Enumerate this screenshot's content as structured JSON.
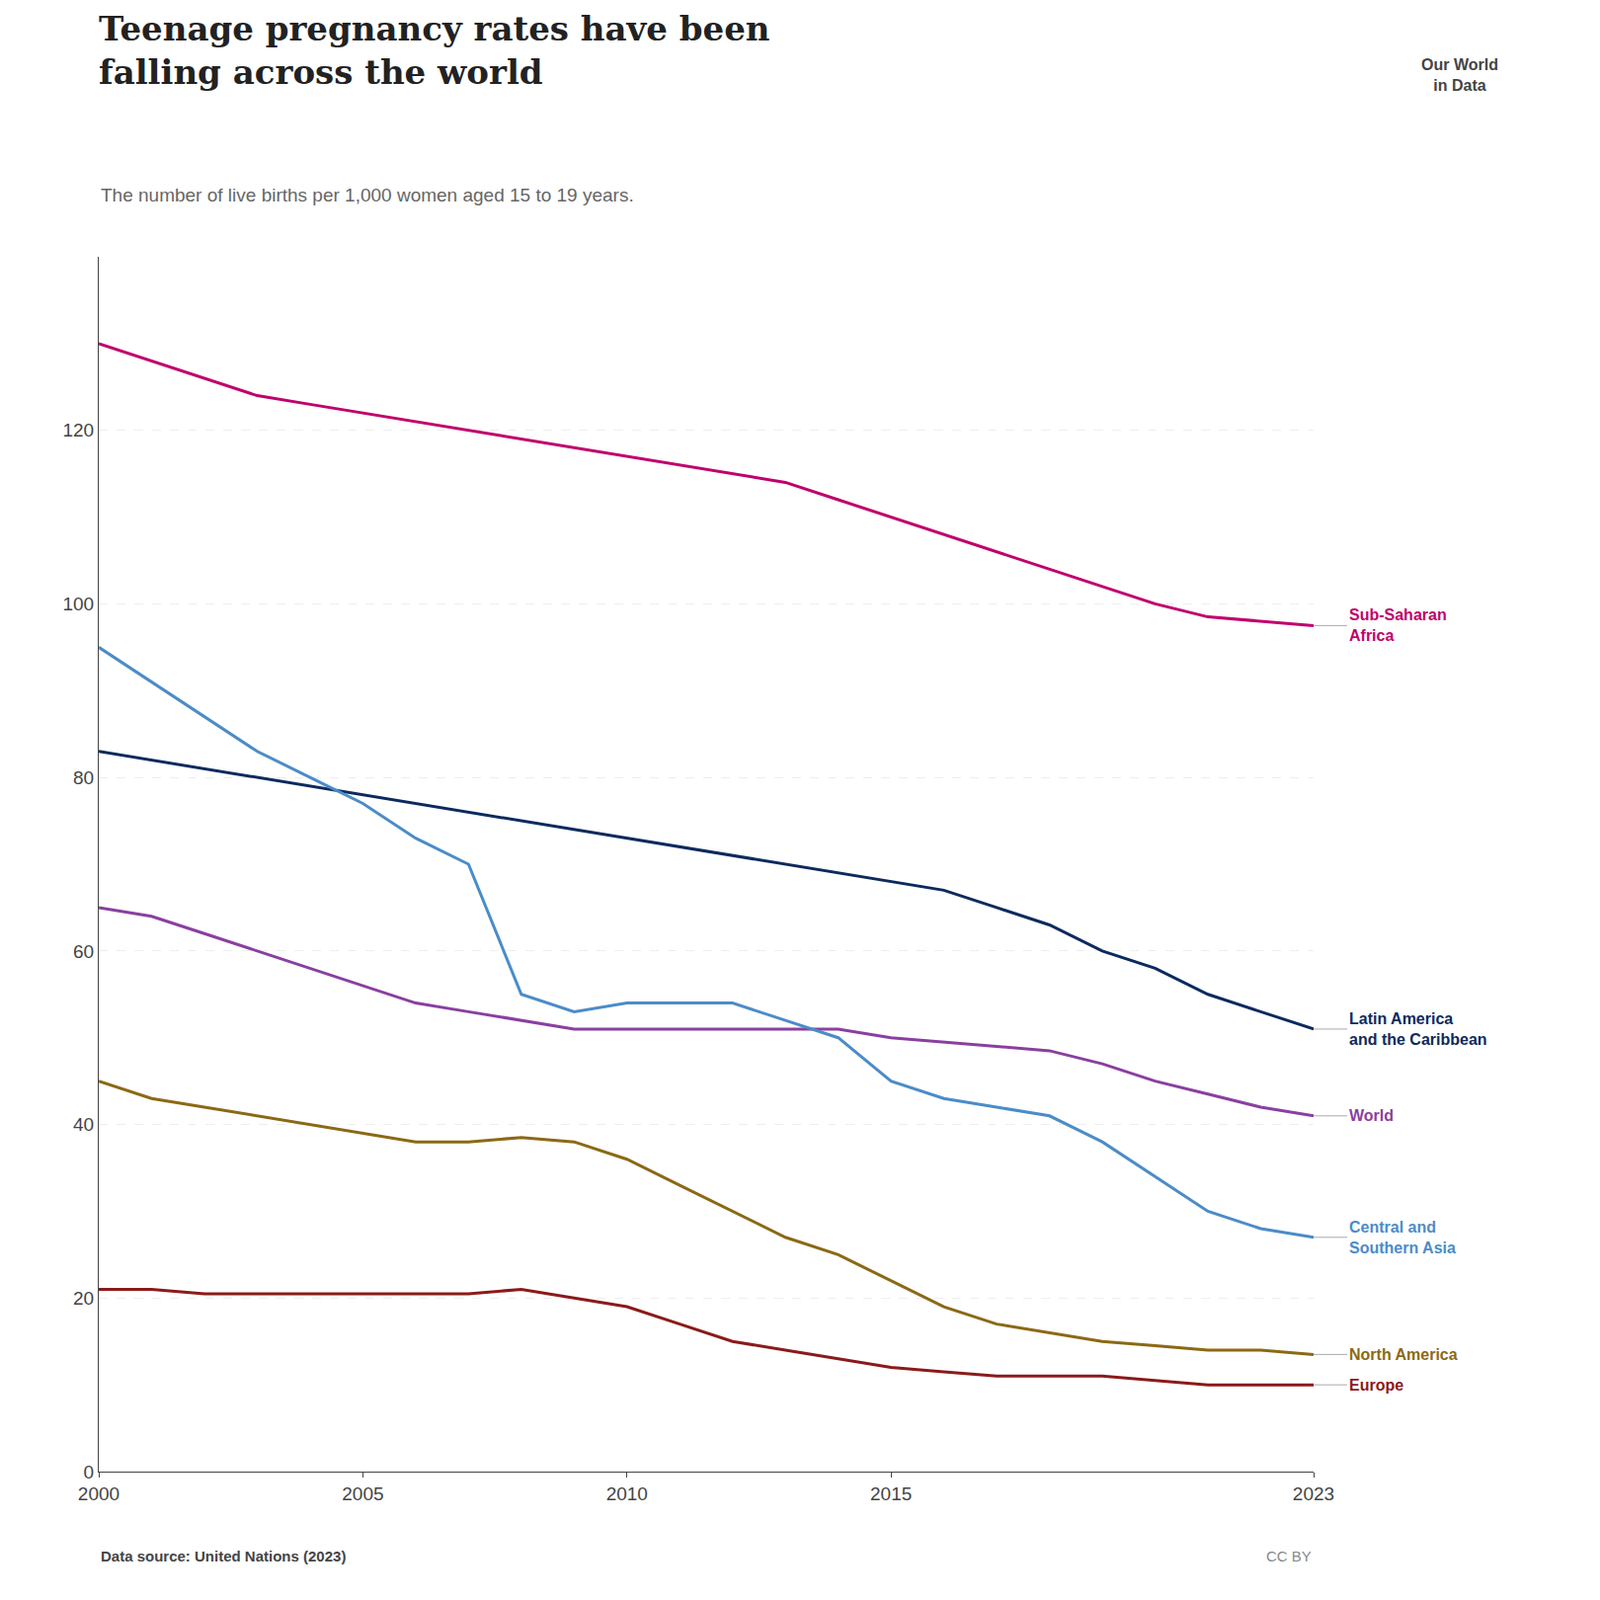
{
  "chart_data": {
    "type": "line",
    "title": "Teenage pregnancy rates have been\nfalling across the world",
    "subtitle": "The number of live births per 1,000 women aged 15 to 19 years.",
    "annotations": [
      "Data source: United Nations (2023)",
      "CC BY",
      "Our World\nin Data"
    ],
    "x": [
      2000,
      2001,
      2002,
      2003,
      2004,
      2005,
      2006,
      2007,
      2008,
      2009,
      2010,
      2011,
      2012,
      2013,
      2014,
      2015,
      2016,
      2017,
      2018,
      2019,
      2020,
      2021,
      2022,
      2023
    ],
    "series": [
      {
        "name": "Sub-Saharan\nAfrica",
        "color": "#C0006D",
        "values": [
          130,
          128,
          126,
          124,
          123,
          122,
          121,
          120,
          119,
          118,
          117,
          116,
          115,
          114,
          112,
          110,
          108,
          106,
          104,
          102,
          100,
          98.5,
          98,
          97.5
        ]
      },
      {
        "name": "Latin America\nand the Caribbean",
        "color": "#0C2A5E",
        "values": [
          83,
          82,
          81,
          80,
          79,
          78,
          77,
          76,
          75,
          74,
          73,
          72,
          71,
          70,
          69,
          68,
          67,
          65,
          63,
          60,
          58,
          55,
          53,
          51
        ]
      },
      {
        "name": "World",
        "color": "#8A3FA0",
        "values": [
          65,
          64,
          62,
          60,
          58,
          56,
          54,
          53,
          52,
          51,
          51,
          51,
          51,
          51,
          51,
          50,
          49.5,
          49,
          48.5,
          47,
          45,
          43.5,
          42,
          41
        ]
      },
      {
        "name": "Central and\nSouthern Asia",
        "color": "#4B8CC8",
        "values": [
          95,
          91,
          87,
          83,
          80,
          77,
          73,
          70,
          55,
          53,
          54,
          54,
          54,
          52,
          50,
          45,
          43,
          42,
          41,
          38,
          34,
          30,
          28,
          27
        ]
      },
      {
        "name": "North America",
        "color": "#8B6914",
        "values": [
          45,
          43,
          42,
          41,
          40,
          39,
          38,
          38,
          38.5,
          38,
          36,
          33,
          30,
          27,
          25,
          22,
          19,
          17,
          16,
          15,
          14.5,
          14,
          14,
          13.5
        ]
      },
      {
        "name": "Europe",
        "color": "#8B1A1A",
        "values": [
          21,
          21,
          20.5,
          20.5,
          20.5,
          20.5,
          20.5,
          20.5,
          21,
          20,
          19,
          17,
          15,
          14,
          13,
          12,
          11.5,
          11,
          11,
          11,
          10.5,
          10,
          10,
          10
        ]
      }
    ],
    "xlim": [
      2000,
      2023
    ],
    "ylim": [
      0,
      140
    ],
    "xticks": [
      2000,
      2005,
      2010,
      2015,
      2023
    ],
    "yticks": [
      0,
      20,
      40,
      60,
      80,
      100,
      120
    ],
    "grid": true
  }
}
